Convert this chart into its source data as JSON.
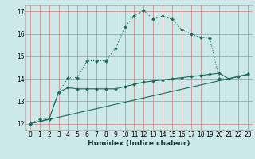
{
  "xlabel": "Humidex (Indice chaleur)",
  "bg_color": "#cce8e8",
  "grid_color": "#d08080",
  "line_color": "#1a6b5e",
  "xlim": [
    -0.5,
    23.5
  ],
  "ylim": [
    11.7,
    17.3
  ],
  "yticks": [
    12,
    13,
    14,
    15,
    16,
    17
  ],
  "xticks": [
    0,
    1,
    2,
    3,
    4,
    5,
    6,
    7,
    8,
    9,
    10,
    11,
    12,
    13,
    14,
    15,
    16,
    17,
    18,
    19,
    20,
    21,
    22,
    23
  ],
  "line1_x": [
    0,
    1,
    2,
    3,
    4,
    5,
    6,
    7,
    8,
    9,
    10,
    11,
    12,
    13,
    14,
    15,
    16,
    17,
    18,
    19,
    20,
    21,
    22,
    23
  ],
  "line1_y": [
    12.0,
    12.2,
    12.2,
    13.4,
    14.05,
    14.05,
    14.8,
    14.8,
    14.8,
    15.35,
    16.3,
    16.8,
    17.05,
    16.65,
    16.8,
    16.65,
    16.2,
    16.0,
    15.85,
    15.8,
    14.0,
    14.0,
    14.1,
    14.2
  ],
  "line2_x": [
    0,
    2,
    3,
    4,
    5,
    6,
    7,
    8,
    9,
    10,
    11,
    12,
    13,
    14,
    15,
    16,
    17,
    18,
    19,
    20,
    21,
    22,
    23
  ],
  "line2_y": [
    12.0,
    12.2,
    13.4,
    13.6,
    13.55,
    13.55,
    13.55,
    13.55,
    13.55,
    13.65,
    13.75,
    13.85,
    13.9,
    13.95,
    14.0,
    14.05,
    14.1,
    14.15,
    14.2,
    14.25,
    14.0,
    14.1,
    14.2
  ],
  "line3_x": [
    0,
    23
  ],
  "line3_y": [
    12.0,
    14.2
  ]
}
